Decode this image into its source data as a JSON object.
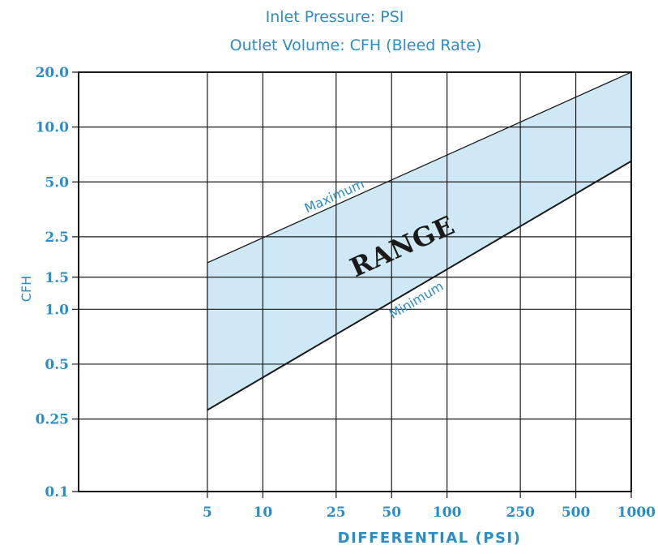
{
  "chart_data": {
    "type": "area",
    "title": "Inlet Pressure: PSI",
    "subtitle": "Outlet Volume: CFH (Bleed Rate)",
    "xlabel": "DIFFERENTIAL (PSI)",
    "ylabel": "CFH",
    "x_scale": "log",
    "y_scale": "log",
    "xlim": [
      1,
      1000
    ],
    "ylim": [
      0.1,
      20
    ],
    "x_ticks": [
      5,
      10,
      25,
      50,
      100,
      250,
      500,
      1000
    ],
    "x_tick_labels": [
      "5",
      "10",
      "25",
      "50",
      "100",
      "250",
      "500",
      "1000"
    ],
    "y_ticks": [
      0.1,
      0.25,
      0.5,
      1.0,
      1.5,
      2.5,
      5.0,
      10.0,
      20.0
    ],
    "y_tick_labels": [
      "0.1",
      "0.25",
      "0.5",
      "1.0",
      "1.5",
      "2.5",
      "5.0",
      "10.0",
      "20.0"
    ],
    "grid": true,
    "fill_color": "#cfe8f5",
    "accent_color": "#2a8ec4",
    "series": [
      {
        "name": "Maximum",
        "x": [
          5,
          1000
        ],
        "y": [
          1.8,
          20
        ]
      },
      {
        "name": "Minimum",
        "x": [
          5,
          1000
        ],
        "y": [
          0.28,
          6.5
        ]
      }
    ],
    "annotations": [
      {
        "text": "RANGE",
        "x": 60,
        "y": 2.0
      }
    ]
  }
}
